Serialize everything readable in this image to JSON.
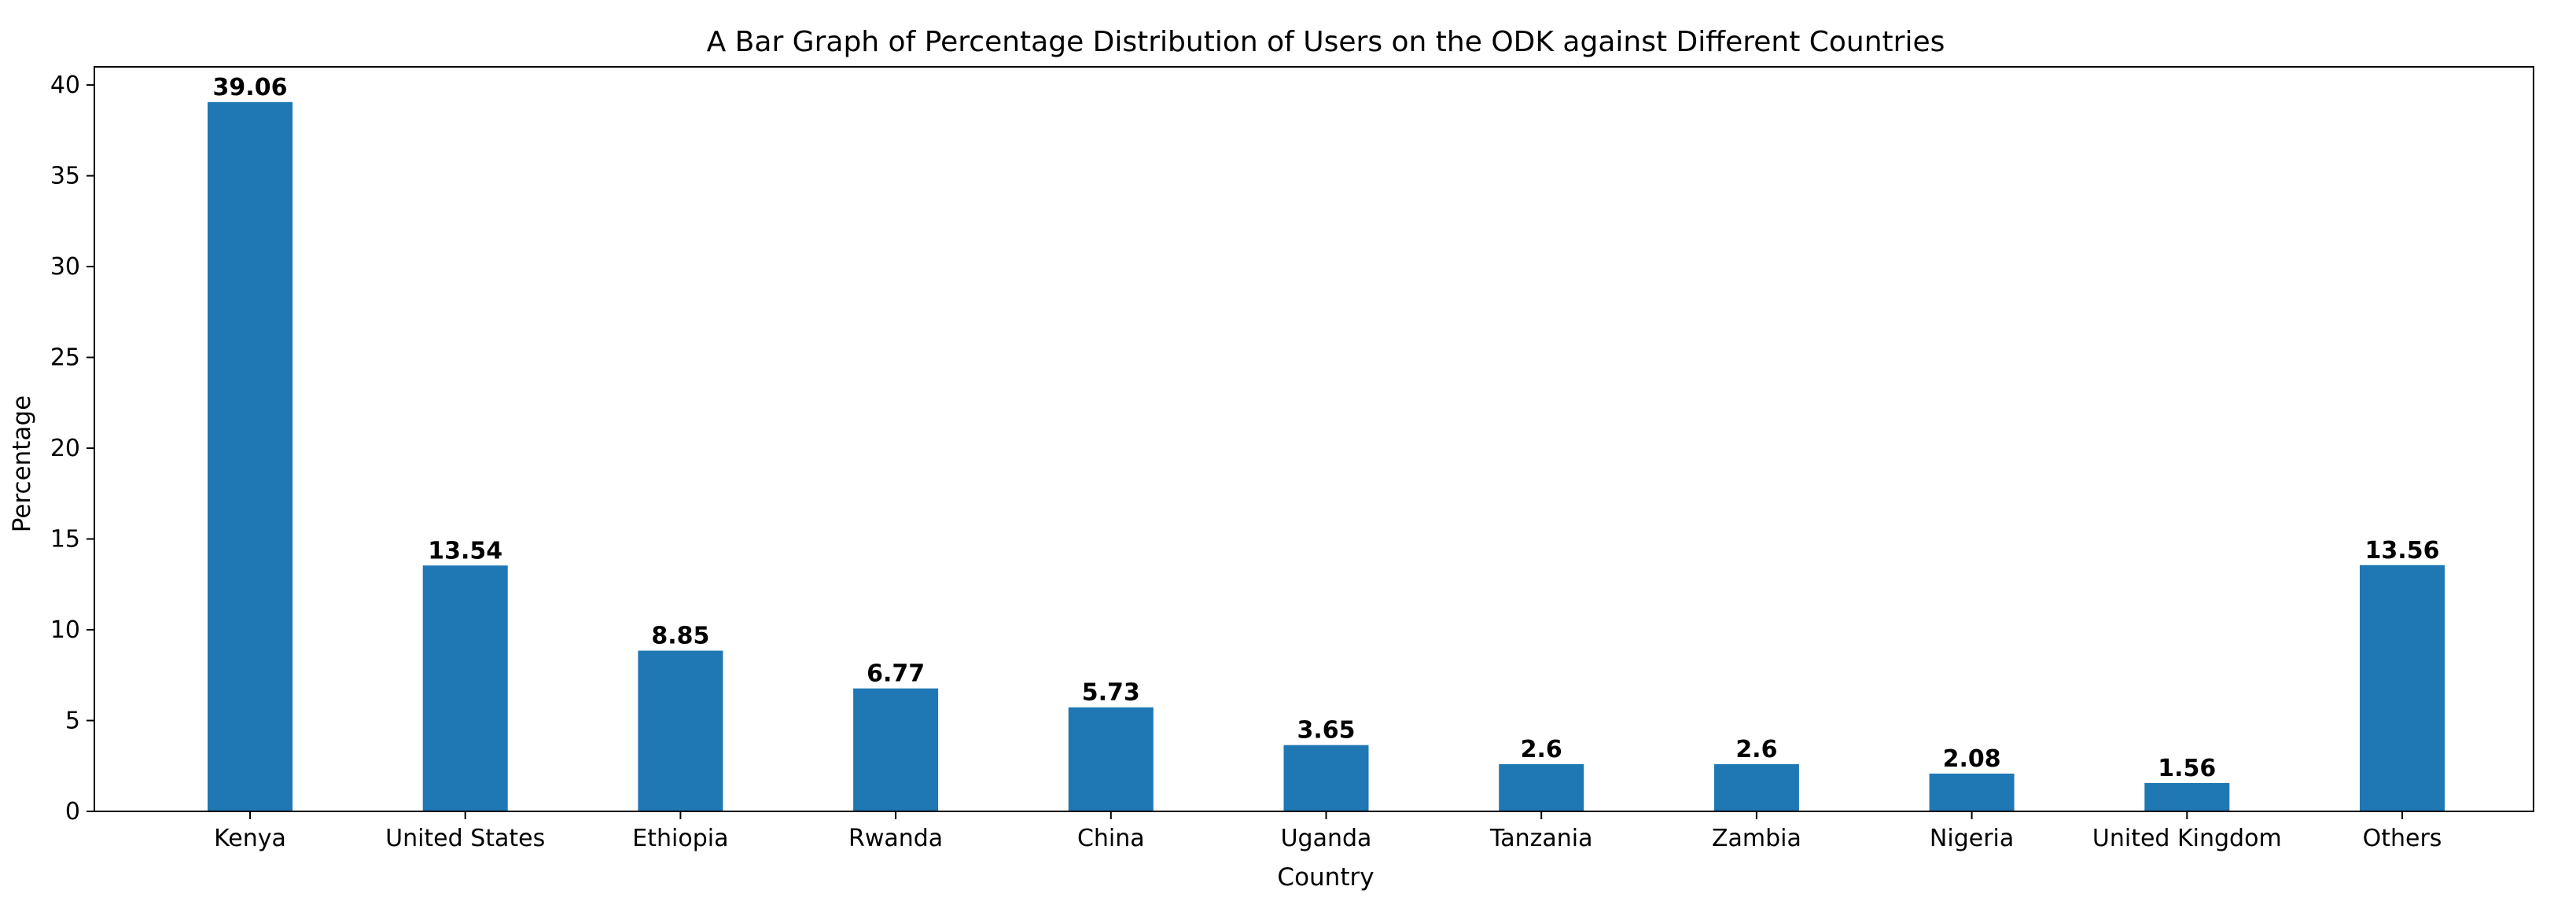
{
  "chart_data": {
    "type": "bar",
    "title": "A Bar Graph of Percentage Distribution of Users on the ODK against Different Countries",
    "xlabel": "Country",
    "ylabel": "Percentage",
    "categories": [
      "Kenya",
      "United States",
      "Ethiopia",
      "Rwanda",
      "China",
      "Uganda",
      "Tanzania",
      "Zambia",
      "Nigeria",
      "United Kingdom",
      "Others"
    ],
    "values": [
      39.06,
      13.54,
      8.85,
      6.77,
      5.73,
      3.65,
      2.6,
      2.6,
      2.08,
      1.56,
      13.56
    ],
    "value_labels": [
      "39.06",
      "13.54",
      "8.85",
      "6.77",
      "5.73",
      "3.65",
      "2.6",
      "2.6",
      "2.08",
      "1.56",
      "13.56"
    ],
    "ylim": [
      0,
      41
    ],
    "yticks": [
      0,
      5,
      10,
      15,
      20,
      25,
      30,
      35,
      40
    ],
    "grid": false,
    "bar_color": "#1f77b4"
  }
}
